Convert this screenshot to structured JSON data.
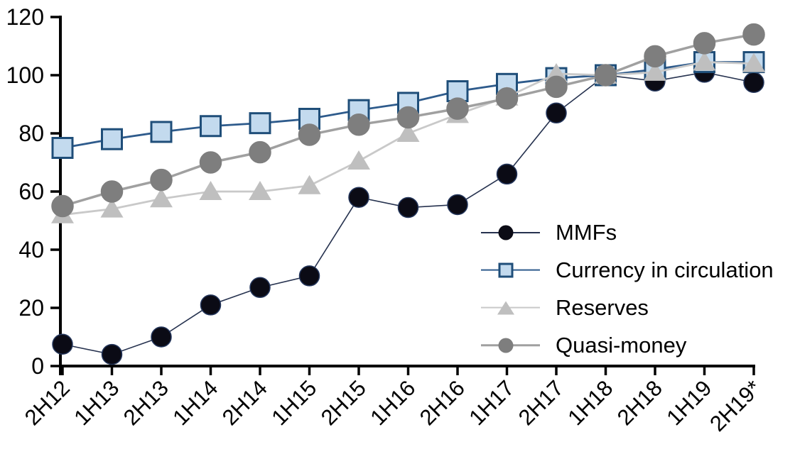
{
  "chart_data": {
    "type": "line",
    "title": "",
    "xlabel": "",
    "ylabel": "",
    "ylim": [
      0,
      120
    ],
    "yticks": [
      0,
      20,
      40,
      60,
      80,
      100,
      120
    ],
    "grid": false,
    "legend_position": "inside-right",
    "axis_color": "#000000",
    "categories": [
      "2H12",
      "1H13",
      "2H13",
      "1H14",
      "2H14",
      "1H15",
      "2H15",
      "1H16",
      "2H16",
      "1H17",
      "2H17",
      "1H18",
      "2H18",
      "1H19",
      "2H19*"
    ],
    "series": [
      {
        "name": "MMFs",
        "marker": "circle",
        "marker_size": 28,
        "color": "#0B0B15",
        "edge_color": "#24365C",
        "line_color": "#26324F",
        "line_width": 1.6,
        "values": [
          7.5,
          4,
          10,
          21,
          27,
          31,
          58,
          54.5,
          55.5,
          66,
          87,
          100,
          98,
          101,
          97.5
        ]
      },
      {
        "name": "Currency in circulation",
        "marker": "square",
        "marker_size": 28,
        "color": "#C3DAEE",
        "edge_color": "#1F4E79",
        "line_color": "#2E5B8C",
        "line_width": 2.8,
        "values": [
          75,
          78,
          80.5,
          82.5,
          83.5,
          85,
          88,
          90.5,
          94.5,
          97,
          99,
          100,
          102,
          104.5,
          104.5
        ]
      },
      {
        "name": "Reserves",
        "marker": "triangle",
        "marker_size": 30,
        "color": "#BFBFBF",
        "edge_color": "#BFBFBF",
        "line_color": "#C9C9C9",
        "line_width": 2.8,
        "values": [
          52,
          54,
          57.5,
          60,
          60,
          62,
          70.5,
          80,
          86.5,
          92.5,
          100.5,
          100,
          101,
          104.5,
          104
        ]
      },
      {
        "name": "Quasi-money",
        "marker": "circle",
        "marker_size": 30,
        "color": "#7E7E7E",
        "edge_color": "#7E7E7E",
        "line_color": "#A0A0A0",
        "line_width": 3.5,
        "values": [
          55,
          60,
          64,
          70,
          73.5,
          79.5,
          83,
          85.5,
          88.5,
          92,
          96,
          100,
          106.5,
          111,
          114
        ]
      }
    ]
  }
}
